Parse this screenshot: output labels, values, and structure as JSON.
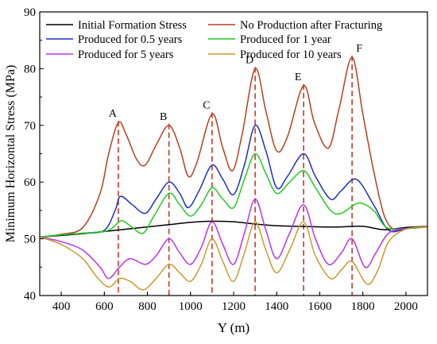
{
  "chart_data": {
    "type": "line",
    "xlabel": "Y (m)",
    "ylabel": "Minimum Horizontal Stress (MPa)",
    "xlim": [
      300,
      2100
    ],
    "ylim": [
      40,
      90
    ],
    "x_ticks": [
      400,
      600,
      800,
      1000,
      1200,
      1400,
      1600,
      1800,
      2000
    ],
    "y_ticks": [
      40,
      50,
      60,
      70,
      80,
      90
    ],
    "legend_placement": "top",
    "fracture_lines": {
      "color": "#c0392b",
      "positions": [
        {
          "label": "A",
          "x": 665
        },
        {
          "label": "B",
          "x": 900
        },
        {
          "label": "C",
          "x": 1100
        },
        {
          "label": "D",
          "x": 1300
        },
        {
          "label": "E",
          "x": 1525
        },
        {
          "label": "F",
          "x": 1750
        }
      ]
    },
    "series": [
      {
        "name": "Initial Formation Stress",
        "color": "#000000",
        "points": [
          [
            300,
            50.3
          ],
          [
            400,
            50.6
          ],
          [
            500,
            50.9
          ],
          [
            600,
            51.3
          ],
          [
            700,
            51.7
          ],
          [
            800,
            52.1
          ],
          [
            900,
            52.5
          ],
          [
            1000,
            52.9
          ],
          [
            1100,
            53.1
          ],
          [
            1200,
            53.0
          ],
          [
            1300,
            52.6
          ],
          [
            1400,
            52.3
          ],
          [
            1500,
            52.2
          ],
          [
            1600,
            52.1
          ],
          [
            1700,
            52.1
          ],
          [
            1800,
            52.2
          ],
          [
            1900,
            51.6
          ],
          [
            2000,
            52.0
          ],
          [
            2100,
            52.2
          ]
        ]
      },
      {
        "name": "No Production after Fracturing",
        "color": "#b5401f",
        "points": [
          [
            300,
            50.3
          ],
          [
            400,
            50.8
          ],
          [
            500,
            52.0
          ],
          [
            580,
            58.0
          ],
          [
            620,
            65.0
          ],
          [
            665,
            70.5
          ],
          [
            700,
            68.5
          ],
          [
            750,
            64.0
          ],
          [
            790,
            63.0
          ],
          [
            840,
            66.5
          ],
          [
            900,
            70.0
          ],
          [
            950,
            66.0
          ],
          [
            990,
            61.0
          ],
          [
            1030,
            63.5
          ],
          [
            1100,
            72.0
          ],
          [
            1150,
            66.0
          ],
          [
            1195,
            62.0
          ],
          [
            1240,
            68.5
          ],
          [
            1300,
            80.0
          ],
          [
            1350,
            72.5
          ],
          [
            1400,
            65.5
          ],
          [
            1450,
            68.0
          ],
          [
            1525,
            77.0
          ],
          [
            1575,
            70.5
          ],
          [
            1640,
            66.0
          ],
          [
            1690,
            73.0
          ],
          [
            1750,
            82.0
          ],
          [
            1800,
            72.0
          ],
          [
            1850,
            62.0
          ],
          [
            1900,
            54.0
          ],
          [
            1950,
            51.5
          ],
          [
            2000,
            51.8
          ],
          [
            2100,
            52.2
          ]
        ]
      },
      {
        "name": "Produced for 0.5 years",
        "color": "#1f2fbf",
        "points": [
          [
            300,
            50.3
          ],
          [
            400,
            50.7
          ],
          [
            500,
            51.0
          ],
          [
            600,
            51.5
          ],
          [
            650,
            55.0
          ],
          [
            675,
            57.5
          ],
          [
            730,
            56.0
          ],
          [
            790,
            54.5
          ],
          [
            840,
            57.0
          ],
          [
            900,
            60.0
          ],
          [
            950,
            58.0
          ],
          [
            990,
            55.5
          ],
          [
            1040,
            58.5
          ],
          [
            1100,
            63.0
          ],
          [
            1150,
            60.5
          ],
          [
            1200,
            57.8
          ],
          [
            1250,
            63.0
          ],
          [
            1300,
            70.0
          ],
          [
            1350,
            65.5
          ],
          [
            1400,
            59.0
          ],
          [
            1450,
            61.0
          ],
          [
            1525,
            65.0
          ],
          [
            1580,
            61.0
          ],
          [
            1650,
            57.0
          ],
          [
            1700,
            58.5
          ],
          [
            1770,
            60.5
          ],
          [
            1850,
            56.0
          ],
          [
            1920,
            51.5
          ],
          [
            2000,
            51.8
          ],
          [
            2100,
            52.1
          ]
        ]
      },
      {
        "name": "Produced for 1 year",
        "color": "#22cc22",
        "points": [
          [
            300,
            50.3
          ],
          [
            400,
            50.7
          ],
          [
            500,
            51.0
          ],
          [
            600,
            51.3
          ],
          [
            640,
            52.0
          ],
          [
            680,
            53.2
          ],
          [
            730,
            52.0
          ],
          [
            780,
            51.0
          ],
          [
            830,
            54.0
          ],
          [
            900,
            58.0
          ],
          [
            950,
            56.0
          ],
          [
            1000,
            54.0
          ],
          [
            1050,
            56.0
          ],
          [
            1100,
            59.0
          ],
          [
            1150,
            57.0
          ],
          [
            1200,
            55.5
          ],
          [
            1250,
            60.5
          ],
          [
            1300,
            65.0
          ],
          [
            1350,
            61.5
          ],
          [
            1400,
            58.0
          ],
          [
            1460,
            60.0
          ],
          [
            1525,
            62.0
          ],
          [
            1580,
            59.0
          ],
          [
            1650,
            55.0
          ],
          [
            1700,
            54.5
          ],
          [
            1780,
            56.3
          ],
          [
            1850,
            55.0
          ],
          [
            1910,
            52.0
          ],
          [
            2000,
            51.8
          ],
          [
            2100,
            52.1
          ]
        ]
      },
      {
        "name": "Produced for 5 years",
        "color": "#bb33ee",
        "points": [
          [
            300,
            50.3
          ],
          [
            400,
            49.5
          ],
          [
            500,
            48.0
          ],
          [
            580,
            45.0
          ],
          [
            620,
            43.0
          ],
          [
            670,
            45.0
          ],
          [
            720,
            46.5
          ],
          [
            790,
            45.5
          ],
          [
            840,
            47.0
          ],
          [
            900,
            50.0
          ],
          [
            950,
            47.5
          ],
          [
            1000,
            45.5
          ],
          [
            1050,
            48.5
          ],
          [
            1100,
            53.0
          ],
          [
            1150,
            49.0
          ],
          [
            1200,
            45.5
          ],
          [
            1250,
            51.0
          ],
          [
            1300,
            57.0
          ],
          [
            1350,
            51.5
          ],
          [
            1400,
            46.5
          ],
          [
            1460,
            51.0
          ],
          [
            1525,
            56.0
          ],
          [
            1580,
            50.0
          ],
          [
            1640,
            45.5
          ],
          [
            1700,
            47.5
          ],
          [
            1750,
            50.0
          ],
          [
            1810,
            45.0
          ],
          [
            1860,
            47.5
          ],
          [
            1920,
            51.0
          ],
          [
            2000,
            51.8
          ],
          [
            2100,
            52.1
          ]
        ]
      },
      {
        "name": "Produced for 10 years",
        "color": "#c99a2e",
        "points": [
          [
            300,
            50.3
          ],
          [
            400,
            49.0
          ],
          [
            500,
            46.5
          ],
          [
            560,
            43.5
          ],
          [
            620,
            41.5
          ],
          [
            670,
            43.0
          ],
          [
            720,
            42.5
          ],
          [
            780,
            41.0
          ],
          [
            840,
            43.0
          ],
          [
            900,
            45.5
          ],
          [
            950,
            44.0
          ],
          [
            1000,
            42.5
          ],
          [
            1050,
            45.5
          ],
          [
            1100,
            50.0
          ],
          [
            1150,
            46.0
          ],
          [
            1200,
            42.5
          ],
          [
            1250,
            47.5
          ],
          [
            1300,
            53.0
          ],
          [
            1350,
            48.0
          ],
          [
            1400,
            44.0
          ],
          [
            1460,
            48.0
          ],
          [
            1525,
            53.0
          ],
          [
            1580,
            47.0
          ],
          [
            1650,
            43.0
          ],
          [
            1700,
            44.5
          ],
          [
            1750,
            46.0
          ],
          [
            1820,
            42.0
          ],
          [
            1870,
            44.5
          ],
          [
            1920,
            49.5
          ],
          [
            2000,
            51.7
          ],
          [
            2100,
            52.1
          ]
        ]
      }
    ]
  }
}
